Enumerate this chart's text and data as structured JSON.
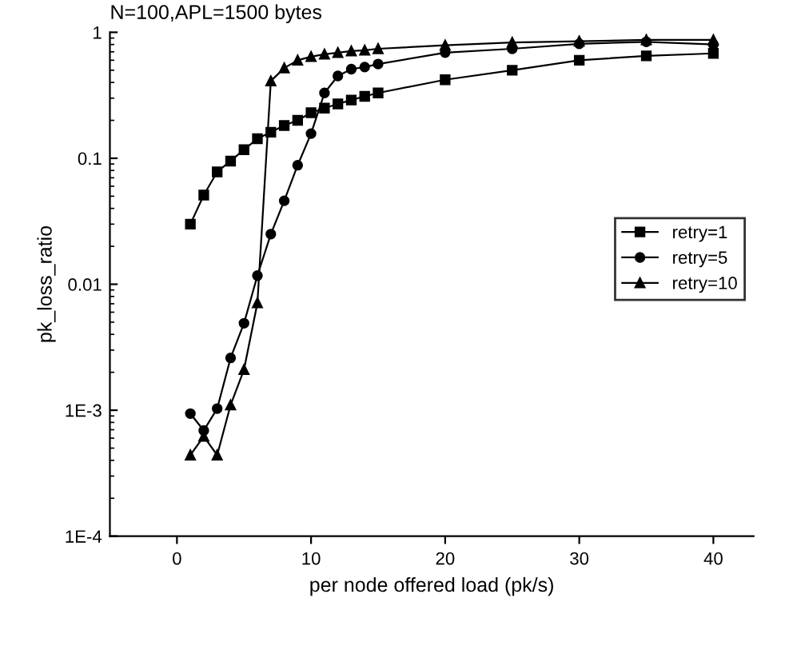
{
  "chart_data": {
    "type": "line",
    "title": "N=100,APL=1500 bytes",
    "xlabel": "per node offered load (pk/s)",
    "ylabel": "pk_loss_ratio",
    "log": "y",
    "xlim": [
      -5,
      43
    ],
    "xticks": [
      0,
      10,
      20,
      30,
      40
    ],
    "ylim": [
      0.0001,
      1
    ],
    "yticks": [
      {
        "value": 0.0001,
        "label": "1E-4"
      },
      {
        "value": 0.001,
        "label": "1E-3"
      },
      0.01,
      0.1,
      1
    ],
    "legend": "right",
    "grid": false,
    "series": [
      {
        "name": "retry=1",
        "color": "#000000",
        "marker": "square",
        "x": [
          1,
          2,
          3,
          4,
          5,
          6,
          7,
          8,
          9,
          10,
          11,
          12,
          13,
          14,
          15,
          20,
          25,
          30,
          35,
          40
        ],
        "values": [
          0.03,
          0.051,
          0.078,
          0.095,
          0.117,
          0.143,
          0.161,
          0.182,
          0.2,
          0.23,
          0.25,
          0.27,
          0.29,
          0.31,
          0.33,
          0.42,
          0.5,
          0.6,
          0.65,
          0.68
        ]
      },
      {
        "name": "retry=5",
        "color": "#000000",
        "marker": "circle",
        "x": [
          1,
          2,
          3,
          4,
          5,
          6,
          7,
          8,
          9,
          10,
          11,
          12,
          13,
          14,
          15,
          20,
          25,
          30,
          35,
          40
        ],
        "values": [
          0.00094,
          0.00069,
          0.00103,
          0.0026,
          0.0049,
          0.0117,
          0.025,
          0.046,
          0.088,
          0.157,
          0.33,
          0.45,
          0.51,
          0.53,
          0.56,
          0.69,
          0.74,
          0.81,
          0.84,
          0.8
        ]
      },
      {
        "name": "retry=10",
        "color": "#000000",
        "marker": "triangle",
        "x": [
          1,
          2,
          3,
          4,
          5,
          6,
          7,
          8,
          9,
          10,
          11,
          12,
          13,
          14,
          15,
          20,
          25,
          30,
          35,
          40
        ],
        "values": [
          0.00044,
          0.00062,
          0.00044,
          0.0011,
          0.0021,
          0.0071,
          0.41,
          0.52,
          0.6,
          0.64,
          0.67,
          0.69,
          0.71,
          0.72,
          0.74,
          0.79,
          0.83,
          0.85,
          0.87,
          0.87
        ]
      }
    ]
  }
}
